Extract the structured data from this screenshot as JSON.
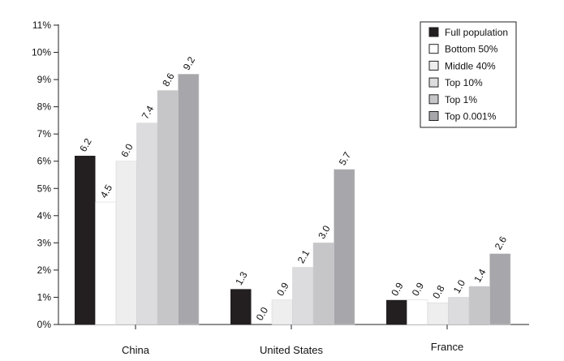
{
  "chart_data": {
    "type": "bar",
    "categories": [
      "China",
      "United States",
      "France"
    ],
    "ylim": [
      0,
      11
    ],
    "y_ticks": [
      "0%",
      "1%",
      "2%",
      "3%",
      "4%",
      "5%",
      "6%",
      "7%",
      "8%",
      "9%",
      "10%",
      "11%"
    ],
    "grid": false,
    "legend_position": "top-right",
    "series": [
      {
        "name": "Full population",
        "color": "#231f20",
        "values": [
          6.2,
          1.3,
          0.9
        ],
        "labels": [
          "6.2",
          "1.3",
          "0.9"
        ]
      },
      {
        "name": "Bottom 50%",
        "color": "#ffffff",
        "values": [
          4.5,
          0.0,
          0.9
        ],
        "labels": [
          "4.5",
          "0.0",
          "0.9"
        ]
      },
      {
        "name": "Middle 40%",
        "color": "#eeeeef",
        "values": [
          6.0,
          0.9,
          0.8
        ],
        "labels": [
          "6.0",
          "0.9",
          "0.8"
        ]
      },
      {
        "name": "Top 10%",
        "color": "#dcdcde",
        "values": [
          7.4,
          2.1,
          1.0
        ],
        "labels": [
          "7.4",
          "2.1",
          "1.0"
        ]
      },
      {
        "name": "Top 1%",
        "color": "#c6c6c9",
        "values": [
          8.6,
          3.0,
          1.4
        ],
        "labels": [
          "8.6",
          "3.0",
          "1.4"
        ]
      },
      {
        "name": "Top 0.001%",
        "color": "#a7a7ab",
        "values": [
          9.2,
          5.7,
          2.6
        ],
        "labels": [
          "9.2",
          "5.7",
          "2.6"
        ]
      }
    ]
  }
}
